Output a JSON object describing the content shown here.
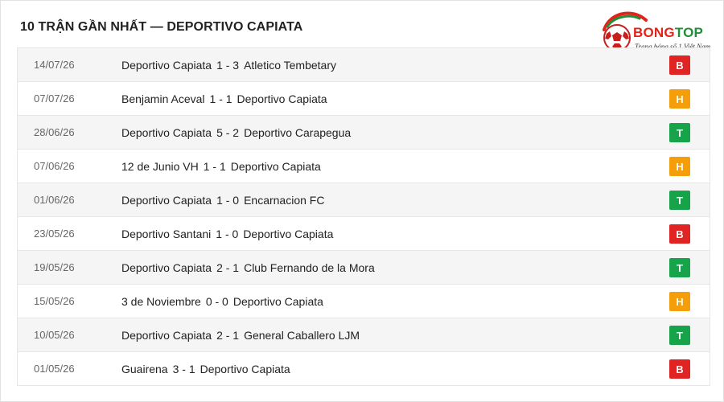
{
  "title": "10 TRẬN GẦN NHẤT — DEPORTIVO CAPIATA",
  "logo": {
    "brand_part1": "BONG",
    "brand_part2": "TOP",
    "tagline": "Trang bóng số 1 Việt Nam",
    "icon": "soccer-ball-icon"
  },
  "colors": {
    "B": "#e02424",
    "H": "#f59e0b",
    "T": "#16a34a",
    "brand_red": "#e2231a",
    "brand_green": "#1f8f3a"
  },
  "matches": [
    {
      "date": "14/07/26",
      "home": "Deportivo Capiata",
      "score": "1 - 3",
      "away": "Atletico Tembetary",
      "result": "B"
    },
    {
      "date": "07/07/26",
      "home": "Benjamin Aceval",
      "score": "1 - 1",
      "away": "Deportivo Capiata",
      "result": "H"
    },
    {
      "date": "28/06/26",
      "home": "Deportivo Capiata",
      "score": "5 - 2",
      "away": "Deportivo Carapegua",
      "result": "T"
    },
    {
      "date": "07/06/26",
      "home": "12 de Junio VH",
      "score": "1 - 1",
      "away": "Deportivo Capiata",
      "result": "H"
    },
    {
      "date": "01/06/26",
      "home": "Deportivo Capiata",
      "score": "1 - 0",
      "away": "Encarnacion FC",
      "result": "T"
    },
    {
      "date": "23/05/26",
      "home": "Deportivo Santani",
      "score": "1 - 0",
      "away": "Deportivo Capiata",
      "result": "B"
    },
    {
      "date": "19/05/26",
      "home": "Deportivo Capiata",
      "score": "2 - 1",
      "away": "Club Fernando de la Mora",
      "result": "T"
    },
    {
      "date": "15/05/26",
      "home": "3 de Noviembre",
      "score": "0 - 0",
      "away": "Deportivo Capiata",
      "result": "H"
    },
    {
      "date": "10/05/26",
      "home": "Deportivo Capiata",
      "score": "2 - 1",
      "away": "General Caballero LJM",
      "result": "T"
    },
    {
      "date": "01/05/26",
      "home": "Guairena",
      "score": "3 - 1",
      "away": "Deportivo Capiata",
      "result": "B"
    }
  ]
}
